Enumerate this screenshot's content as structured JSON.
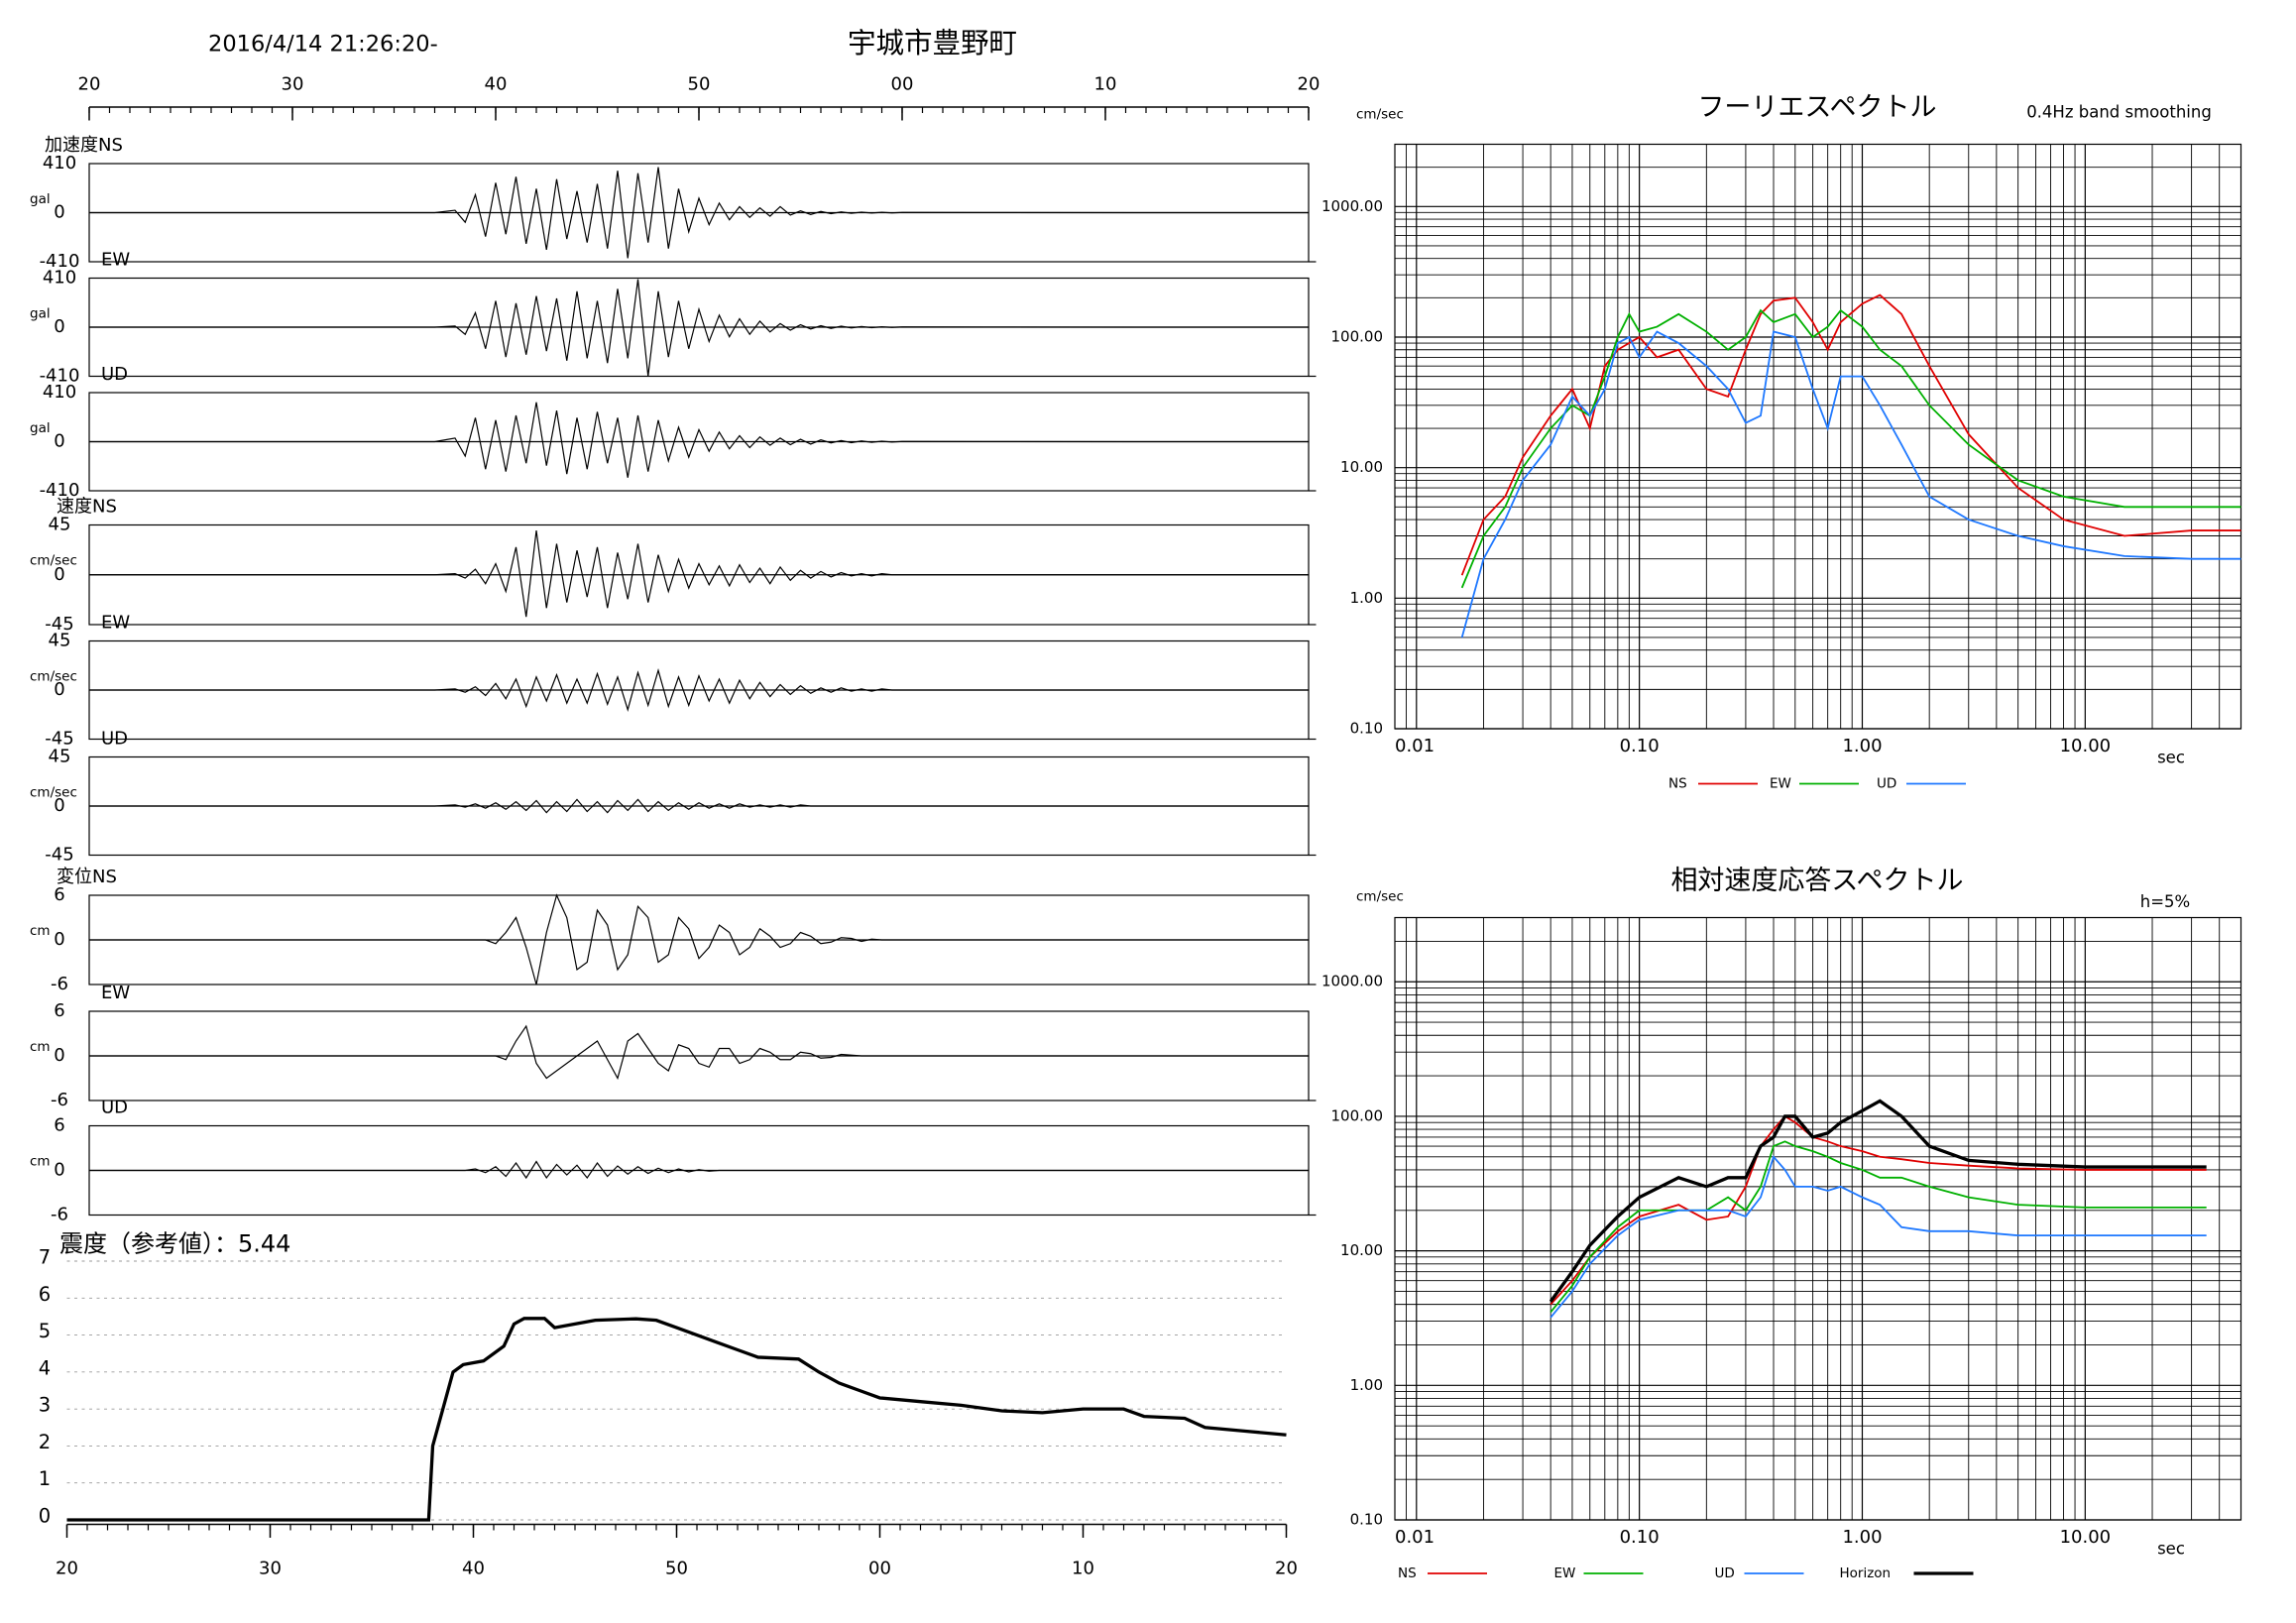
{
  "chart_data": [
    {
      "type": "waveform",
      "title": "宇城市豊野町",
      "subtitle": "2016/4/14 21:26:20-",
      "xlim": [
        20,
        80
      ],
      "xminor": 1,
      "xticks": [
        20,
        30,
        40,
        50,
        {
          "value": 60,
          "label": "00"
        },
        {
          "value": 70,
          "label": "10"
        },
        {
          "value": 80,
          "label": "20"
        }
      ],
      "x": [
        20,
        37,
        38,
        38.5,
        39,
        39.5,
        40,
        40.5,
        41,
        41.5,
        42,
        42.5,
        43,
        43.5,
        44,
        44.5,
        45,
        45.5,
        46,
        46.5,
        47,
        47.5,
        48,
        48.5,
        49,
        49.5,
        50,
        50.5,
        51,
        51.5,
        52,
        52.5,
        53,
        53.5,
        54,
        54.5,
        55,
        55.5,
        56,
        56.5,
        57,
        57.5,
        58,
        58.5,
        59,
        59.5,
        60,
        64,
        72,
        80
      ],
      "panels": [
        {
          "name": "加速度NS",
          "unit": "gal",
          "ylim": [
            -410,
            410
          ],
          "yticks": [
            -410,
            0,
            410
          ],
          "values": [
            0,
            0,
            20,
            -80,
            150,
            -200,
            250,
            -180,
            300,
            -260,
            200,
            -310,
            280,
            -220,
            180,
            -250,
            240,
            -300,
            350,
            -380,
            330,
            -250,
            380,
            -300,
            200,
            -160,
            120,
            -100,
            80,
            -60,
            50,
            -40,
            40,
            -30,
            50,
            -20,
            15,
            -15,
            10,
            -8,
            6,
            -5,
            4,
            -3,
            3,
            -2,
            2,
            1,
            0,
            0
          ]
        },
        {
          "name": "EW",
          "unit": "gal",
          "ylim": [
            -410,
            410
          ],
          "yticks": [
            -410,
            0,
            410
          ],
          "values": [
            0,
            0,
            10,
            -60,
            120,
            -180,
            220,
            -250,
            200,
            -230,
            260,
            -200,
            240,
            -280,
            300,
            -260,
            220,
            -300,
            320,
            -260,
            400,
            -410,
            300,
            -250,
            220,
            -180,
            150,
            -120,
            100,
            -80,
            70,
            -60,
            50,
            -40,
            30,
            -25,
            20,
            -15,
            12,
            -10,
            8,
            -6,
            5,
            -4,
            3,
            -2,
            2,
            1,
            0,
            0
          ]
        },
        {
          "name": "UD",
          "unit": "gal",
          "ylim": [
            -410,
            410
          ],
          "yticks": [
            -410,
            0,
            410
          ],
          "values": [
            0,
            0,
            30,
            -120,
            200,
            -230,
            180,
            -250,
            220,
            -180,
            330,
            -200,
            260,
            -270,
            200,
            -230,
            250,
            -180,
            200,
            -300,
            220,
            -250,
            180,
            -160,
            120,
            -130,
            100,
            -80,
            80,
            -60,
            50,
            -50,
            40,
            -30,
            30,
            -25,
            20,
            -20,
            15,
            -10,
            10,
            -8,
            6,
            -5,
            4,
            -3,
            2,
            1,
            0,
            0
          ]
        },
        {
          "name": "速度NS",
          "unit": "cm/sec",
          "ylim": [
            -45,
            45
          ],
          "yticks": [
            -45,
            0,
            45
          ],
          "values": [
            0,
            0,
            1,
            -3,
            5,
            -8,
            10,
            -15,
            25,
            -38,
            40,
            -30,
            28,
            -25,
            22,
            -20,
            25,
            -30,
            20,
            -22,
            28,
            -25,
            18,
            -15,
            14,
            -12,
            10,
            -9,
            8,
            -10,
            9,
            -7,
            6,
            -8,
            7,
            -5,
            4,
            -3,
            3,
            -2,
            2,
            -1,
            1,
            -1,
            1,
            0,
            0,
            0,
            0,
            0
          ]
        },
        {
          "name": "EW",
          "unit": "cm/sec",
          "ylim": [
            -45,
            45
          ],
          "yticks": [
            -45,
            0,
            45
          ],
          "values": [
            0,
            0,
            1,
            -2,
            3,
            -5,
            6,
            -8,
            10,
            -15,
            12,
            -10,
            14,
            -12,
            10,
            -12,
            15,
            -13,
            12,
            -18,
            16,
            -14,
            18,
            -15,
            12,
            -14,
            13,
            -10,
            10,
            -12,
            9,
            -8,
            7,
            -6,
            5,
            -4,
            4,
            -3,
            2,
            -2,
            2,
            -1,
            1,
            -1,
            1,
            0,
            0,
            0,
            0,
            0
          ]
        },
        {
          "name": "UD",
          "unit": "cm/sec",
          "ylim": [
            -45,
            45
          ],
          "yticks": [
            -45,
            0,
            45
          ],
          "values": [
            0,
            0,
            1,
            -1,
            2,
            -2,
            3,
            -3,
            4,
            -4,
            5,
            -6,
            4,
            -5,
            6,
            -5,
            4,
            -6,
            5,
            -4,
            6,
            -5,
            4,
            -4,
            3,
            -3,
            3,
            -2,
            2,
            -2,
            2,
            -1,
            1,
            -1,
            1,
            -1,
            1,
            0,
            0,
            0,
            0,
            0,
            0,
            0,
            0,
            0,
            0,
            0,
            0,
            0
          ]
        },
        {
          "name": "変位NS",
          "unit": "cm",
          "ylim": [
            -6,
            6
          ],
          "yticks": [
            -6,
            0,
            6
          ],
          "values": [
            0,
            0,
            0,
            0,
            0,
            0,
            -0.5,
            1,
            3,
            -1,
            -6,
            1,
            6,
            3,
            -4,
            -3,
            4,
            2,
            -4,
            -2,
            4.5,
            3,
            -3,
            -2,
            3,
            1.5,
            -2.5,
            -1,
            2,
            1,
            -2,
            -1,
            1.5,
            0.5,
            -1,
            -0.5,
            1,
            0.5,
            -0.5,
            -0.3,
            0.3,
            0.2,
            -0.2,
            0.1,
            0,
            0,
            0,
            0,
            0,
            0
          ]
        },
        {
          "name": "EW",
          "unit": "cm",
          "ylim": [
            -6,
            6
          ],
          "yticks": [
            -6,
            0,
            6
          ],
          "values": [
            0,
            0,
            0,
            0,
            0,
            0,
            0,
            -0.5,
            2,
            4,
            -1,
            -3,
            -2,
            -1,
            0,
            1,
            2,
            -0.5,
            -3,
            2,
            3,
            1,
            -1,
            -2,
            1.5,
            1,
            -1,
            -1.5,
            1,
            1,
            -1,
            -0.5,
            1,
            0.5,
            -0.5,
            -0.5,
            0.5,
            0.3,
            -0.3,
            -0.2,
            0.2,
            0.1,
            0,
            0,
            0,
            0,
            0,
            0,
            0,
            0
          ]
        },
        {
          "name": "UD",
          "unit": "cm",
          "ylim": [
            -6,
            6
          ],
          "yticks": [
            -6,
            0,
            6
          ],
          "values": [
            0,
            0,
            0,
            0,
            0.2,
            -0.3,
            0.5,
            -0.8,
            1,
            -1,
            1.2,
            -1,
            0.8,
            -0.6,
            0.7,
            -1,
            1,
            -0.8,
            0.6,
            -0.5,
            0.5,
            -0.4,
            0.3,
            -0.3,
            0.2,
            -0.2,
            0.1,
            -0.1,
            0,
            0,
            0,
            0,
            0,
            0,
            0,
            0,
            0,
            0,
            0,
            0,
            0,
            0,
            0,
            0,
            0,
            0,
            0,
            0,
            0,
            0
          ]
        }
      ]
    },
    {
      "type": "line",
      "title": "震度（参考値）：5.44",
      "color": "#000000",
      "grid": true,
      "xlim": [
        20,
        80
      ],
      "xminor": 1,
      "xticks": [
        20,
        30,
        40,
        50,
        {
          "value": 60,
          "label": "00"
        },
        {
          "value": 70,
          "label": "10"
        },
        {
          "value": 80,
          "label": "20"
        }
      ],
      "ylim": [
        0,
        7
      ],
      "yticks": [
        0,
        1,
        2,
        3,
        4,
        5,
        6,
        7
      ],
      "x": [
        20,
        37.8,
        38,
        38.5,
        39,
        39.5,
        40.5,
        41.5,
        42,
        42.5,
        43.5,
        44,
        45,
        46,
        48,
        49,
        50,
        51,
        52,
        53,
        54,
        56,
        57,
        58,
        59,
        60,
        62,
        64,
        66,
        68,
        70,
        72,
        73,
        75,
        76,
        78,
        80
      ],
      "values": [
        0,
        0,
        2,
        3,
        4,
        4.2,
        4.3,
        4.7,
        5.3,
        5.45,
        5.45,
        5.2,
        5.3,
        5.4,
        5.44,
        5.4,
        5.2,
        5.0,
        4.8,
        4.6,
        4.4,
        4.35,
        4.0,
        3.7,
        3.5,
        3.3,
        3.2,
        3.1,
        2.95,
        2.9,
        3.0,
        3.0,
        2.8,
        2.75,
        2.5,
        2.4,
        2.3
      ]
    },
    {
      "type": "line",
      "title": "フーリエスペクトル",
      "subtitle": "0.4Hz band smoothing",
      "xlabel": "sec",
      "ylabel": "cm/sec",
      "log_x": true,
      "log_y": true,
      "grid": true,
      "xlim": [
        0.008,
        50
      ],
      "ylim": [
        0.1,
        3000
      ],
      "xticks": [
        {
          "value": 0.01,
          "label": "0.01"
        },
        {
          "value": 0.1,
          "label": "0.10"
        },
        {
          "value": 1,
          "label": "1.00"
        },
        {
          "value": 10,
          "label": "10.00"
        }
      ],
      "yticks": [
        {
          "value": 0.1,
          "label": "0.10"
        },
        {
          "value": 1,
          "label": "1.00"
        },
        {
          "value": 10,
          "label": "10.00"
        },
        {
          "value": 100,
          "label": "100.00"
        },
        {
          "value": 1000,
          "label": "1000.00"
        }
      ],
      "x": [
        0.016,
        0.02,
        0.025,
        0.03,
        0.04,
        0.05,
        0.06,
        0.07,
        0.08,
        0.09,
        0.1,
        0.12,
        0.15,
        0.2,
        0.25,
        0.3,
        0.35,
        0.4,
        0.5,
        0.6,
        0.7,
        0.8,
        1,
        1.2,
        1.5,
        2,
        3,
        5,
        8,
        15,
        30,
        50
      ],
      "series": [
        {
          "name": "NS",
          "color": "#e00000",
          "values": [
            1.5,
            4,
            6,
            12,
            25,
            40,
            20,
            60,
            80,
            90,
            100,
            70,
            80,
            40,
            35,
            80,
            150,
            190,
            200,
            130,
            80,
            130,
            180,
            210,
            150,
            60,
            18,
            7,
            4,
            3,
            3.3,
            3.3
          ]
        },
        {
          "name": "EW",
          "color": "#00b000",
          "values": [
            1.2,
            3,
            5,
            10,
            20,
            30,
            25,
            50,
            100,
            150,
            110,
            120,
            150,
            110,
            80,
            100,
            160,
            130,
            150,
            100,
            120,
            160,
            120,
            80,
            60,
            30,
            15,
            8,
            6,
            5,
            5,
            5
          ]
        },
        {
          "name": "UD",
          "color": "#1e78ff",
          "values": [
            0.5,
            2,
            4,
            8,
            15,
            35,
            25,
            40,
            90,
            100,
            70,
            110,
            90,
            60,
            40,
            22,
            25,
            110,
            100,
            40,
            20,
            50,
            50,
            30,
            15,
            6,
            4,
            3,
            2.5,
            2.1,
            2,
            2
          ]
        }
      ]
    },
    {
      "type": "line",
      "title": "相対速度応答スペクトル",
      "subtitle": "h=5%",
      "xlabel": "sec",
      "ylabel": "cm/sec",
      "log_x": true,
      "log_y": true,
      "grid": true,
      "xlim": [
        0.008,
        50
      ],
      "ylim": [
        0.1,
        3000
      ],
      "xticks": [
        {
          "value": 0.01,
          "label": "0.01"
        },
        {
          "value": 0.1,
          "label": "0.10"
        },
        {
          "value": 1,
          "label": "1.00"
        },
        {
          "value": 10,
          "label": "10.00"
        }
      ],
      "yticks": [
        {
          "value": 0.1,
          "label": "0.10"
        },
        {
          "value": 1,
          "label": "1.00"
        },
        {
          "value": 10,
          "label": "10.00"
        },
        {
          "value": 100,
          "label": "100.00"
        },
        {
          "value": 1000,
          "label": "1000.00"
        }
      ],
      "x": [
        0.04,
        0.05,
        0.06,
        0.08,
        0.1,
        0.15,
        0.2,
        0.25,
        0.3,
        0.35,
        0.4,
        0.45,
        0.5,
        0.6,
        0.7,
        0.8,
        1,
        1.2,
        1.5,
        2,
        3,
        5,
        10,
        20,
        35
      ],
      "series": [
        {
          "name": "NS",
          "color": "#e00000",
          "values": [
            4,
            6,
            9,
            14,
            18,
            22,
            17,
            18,
            30,
            60,
            80,
            100,
            90,
            70,
            65,
            60,
            55,
            50,
            48,
            45,
            43,
            41,
            40,
            40,
            40
          ]
        },
        {
          "name": "EW",
          "color": "#00b000",
          "values": [
            3.5,
            5.5,
            9,
            15,
            20,
            20,
            20,
            25,
            20,
            30,
            60,
            65,
            60,
            55,
            50,
            45,
            40,
            35,
            35,
            30,
            25,
            22,
            21,
            21,
            21
          ]
        },
        {
          "name": "UD",
          "color": "#1e78ff",
          "values": [
            3.2,
            5,
            8,
            13,
            17,
            20,
            20,
            20,
            18,
            25,
            50,
            40,
            30,
            30,
            28,
            30,
            25,
            22,
            15,
            14,
            14,
            13,
            13,
            13,
            13
          ]
        },
        {
          "name": "Horizon",
          "color": "#000000",
          "values": [
            4.2,
            7,
            11,
            18,
            25,
            35,
            30,
            35,
            35,
            60,
            70,
            100,
            100,
            70,
            75,
            90,
            110,
            130,
            100,
            60,
            47,
            44,
            42,
            42,
            42
          ]
        }
      ]
    }
  ]
}
